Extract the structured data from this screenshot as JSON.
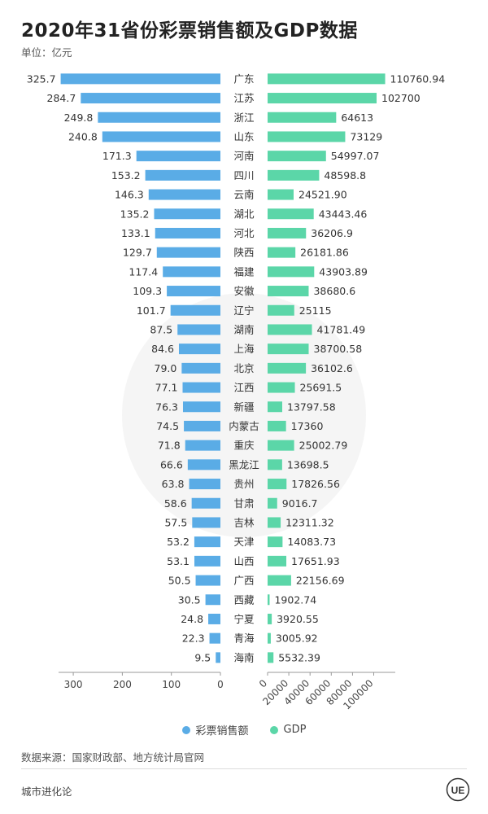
{
  "header": {
    "title": "2020年31省份彩票销售额及GDP数据",
    "unit": "单位：亿元"
  },
  "legend": {
    "lottery_label": "彩票销售额",
    "gdp_label": "GDP"
  },
  "colors": {
    "lottery": "#5aace6",
    "gdp": "#5bd6a8"
  },
  "footer": {
    "source": "数据来源：国家财政部、地方统计局官网",
    "brand": "城市进化论",
    "logo_text": "UE"
  },
  "chart_data": {
    "type": "bar",
    "orientation": "horizontal",
    "layout": "butterfly",
    "categories": [
      "广东",
      "江苏",
      "浙江",
      "山东",
      "河南",
      "四川",
      "云南",
      "湖北",
      "河北",
      "陕西",
      "福建",
      "安徽",
      "辽宁",
      "湖南",
      "上海",
      "北京",
      "江西",
      "新疆",
      "内蒙古",
      "重庆",
      "黑龙江",
      "贵州",
      "甘肃",
      "吉林",
      "天津",
      "山西",
      "广西",
      "西藏",
      "宁夏",
      "青海",
      "海南"
    ],
    "series": [
      {
        "name": "彩票销售额",
        "side": "left",
        "labels": [
          "325.7",
          "284.7",
          "249.8",
          "240.8",
          "171.3",
          "153.2",
          "146.3",
          "135.2",
          "133.1",
          "129.7",
          "117.4",
          "109.3",
          "101.7",
          "87.5",
          "84.6",
          "79.0",
          "77.1",
          "76.3",
          "74.5",
          "71.8",
          "66.6",
          "63.8",
          "58.6",
          "57.5",
          "53.2",
          "53.1",
          "50.5",
          "30.5",
          "24.8",
          "22.3",
          "9.5"
        ],
        "values": [
          325.7,
          284.7,
          249.8,
          240.8,
          171.3,
          153.2,
          146.3,
          135.2,
          133.1,
          129.7,
          117.4,
          109.3,
          101.7,
          87.5,
          84.6,
          79.0,
          77.1,
          76.3,
          74.5,
          71.8,
          66.6,
          63.8,
          58.6,
          57.5,
          53.2,
          53.1,
          50.5,
          30.5,
          24.8,
          22.3,
          9.5
        ],
        "axis_ticks": [
          "300",
          "200",
          "100",
          "0"
        ],
        "axis_tick_values": [
          300,
          200,
          100,
          0
        ]
      },
      {
        "name": "GDP",
        "side": "right",
        "labels": [
          "110760.94",
          "102700",
          "64613",
          "73129",
          "54997.07",
          "48598.8",
          "24521.90",
          "43443.46",
          "36206.9",
          "26181.86",
          "43903.89",
          "38680.6",
          "25115",
          "41781.49",
          "38700.58",
          "36102.6",
          "25691.5",
          "13797.58",
          "17360",
          "25002.79",
          "13698.5",
          "17826.56",
          "9016.7",
          "12311.32",
          "14083.73",
          "17651.93",
          "22156.69",
          "1902.74",
          "3920.55",
          "3005.92",
          "5532.39"
        ],
        "values": [
          110760.94,
          102700,
          64613,
          73129,
          54997.07,
          48598.8,
          24521.9,
          43443.46,
          36206.9,
          26181.86,
          43903.89,
          38680.6,
          25115,
          41781.49,
          38700.58,
          36102.6,
          25691.5,
          13797.58,
          17360,
          25002.79,
          13698.5,
          17826.56,
          9016.7,
          12311.32,
          14083.73,
          17651.93,
          22156.69,
          1902.74,
          3920.55,
          3005.92,
          5532.39
        ],
        "axis_ticks": [
          "0",
          "20000",
          "40000",
          "60000",
          "80000",
          "100000"
        ],
        "axis_tick_values": [
          0,
          20000,
          40000,
          60000,
          80000,
          100000
        ]
      }
    ],
    "left_xlim": [
      0,
      330
    ],
    "right_xlim": [
      0,
      118000
    ],
    "grid": false,
    "legend_position": "bottom-center"
  }
}
